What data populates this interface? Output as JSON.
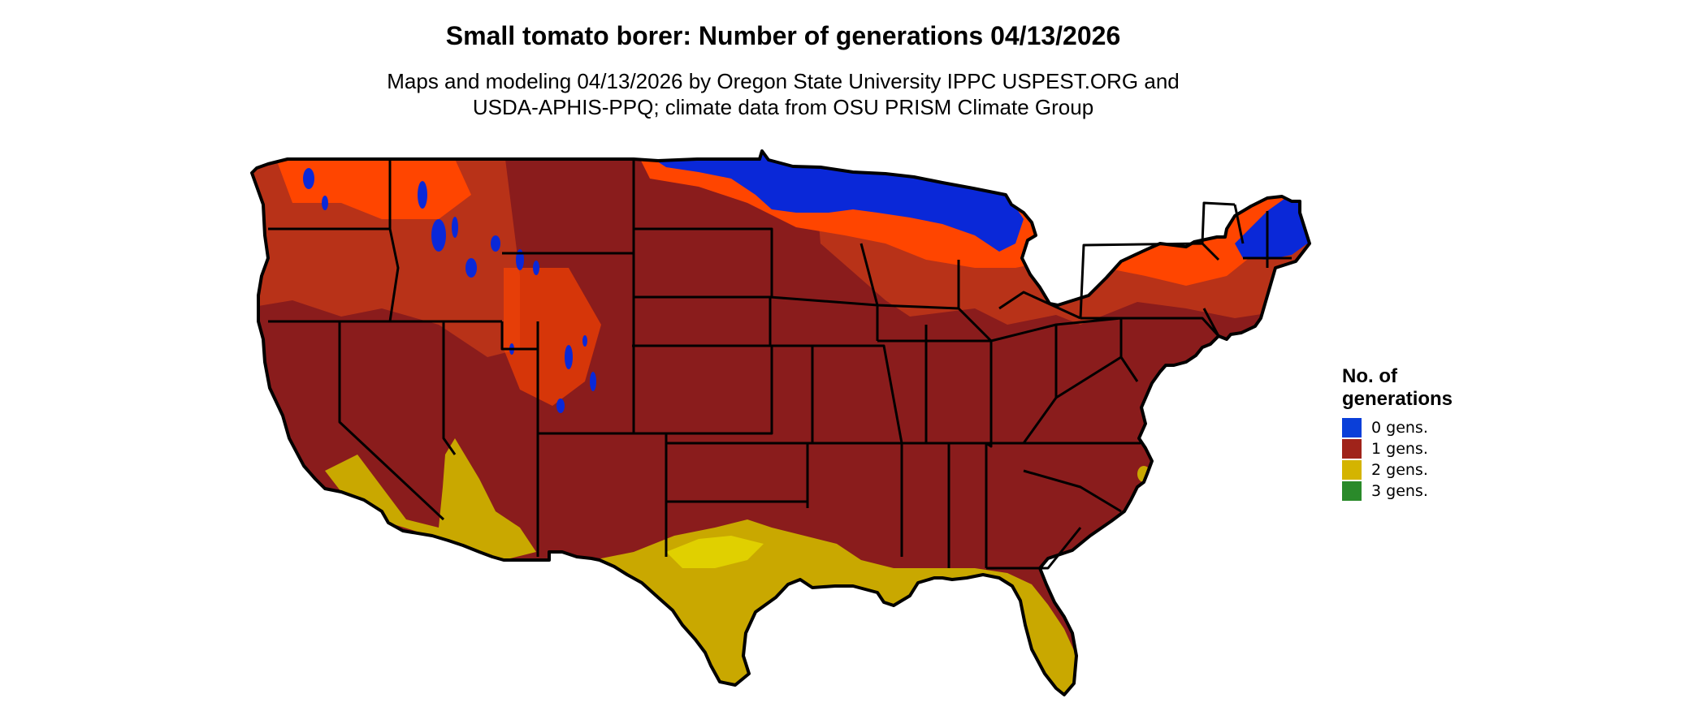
{
  "title": "Small tomato borer: Number of generations 04/13/2026",
  "subtitle_lines": [
    "Maps and modeling 04/13/2026 by Oregon State University IPPC USPEST.ORG and",
    "USDA-APHIS-PPQ; climate data from OSU PRISM Climate Group"
  ],
  "legend": {
    "title_lines": [
      "No. of",
      "generations"
    ],
    "items": [
      {
        "label": "0 gens.",
        "color": "#0a3fd9"
      },
      {
        "label": "1 gens.",
        "color": "#a0231a"
      },
      {
        "label": "2 gens.",
        "color": "#d4b400"
      },
      {
        "label": "3 gens.",
        "color": "#2a8a2a"
      }
    ]
  },
  "map_colors": {
    "zero": "#0a28d8",
    "one_dark": "#8a1c1c",
    "one_mid": "#b83218",
    "one_light": "#ff4500",
    "two": "#c9a800",
    "two_light": "#e0d000",
    "three": "#2a8a2a",
    "border": "#000000"
  }
}
